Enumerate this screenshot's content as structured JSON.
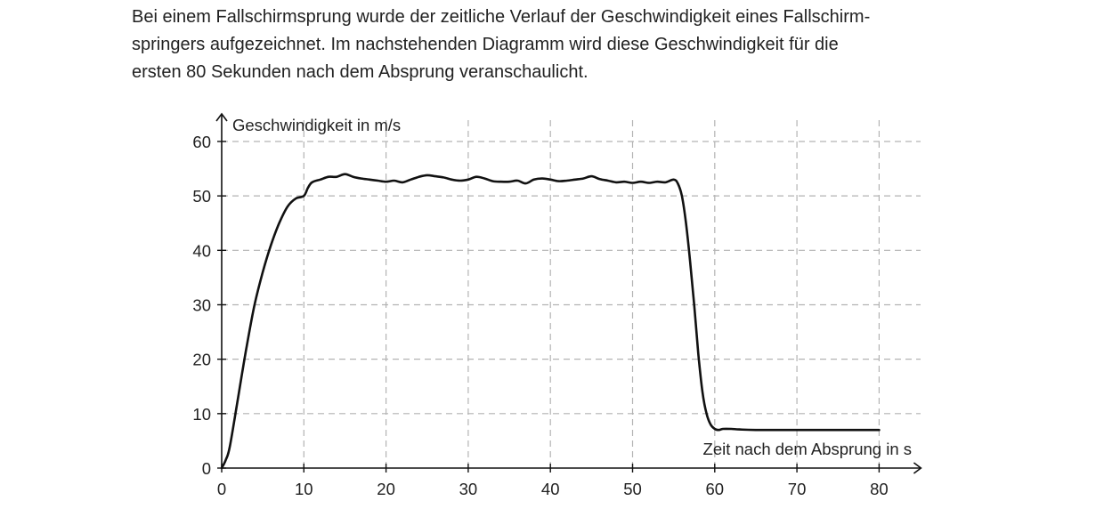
{
  "intro_lines": [
    "Bei einem Fallschirmsprung wurde der zeitliche Verlauf der Geschwindigkeit eines Fallschirm-",
    "springers aufgezeichnet. Im nachstehenden Diagramm wird diese Geschwindigkeit für die",
    "ersten 80 Sekunden nach dem Absprung veranschaulicht."
  ],
  "chart_data": {
    "type": "line",
    "xlabel": "Zeit nach dem Absprung in s",
    "ylabel": "Geschwindigkeit in m/s",
    "xlim": [
      0,
      80
    ],
    "ylim": [
      0,
      60
    ],
    "xticks": [
      0,
      10,
      20,
      30,
      40,
      50,
      60,
      70,
      80
    ],
    "yticks": [
      0,
      10,
      20,
      30,
      40,
      50,
      60
    ],
    "grid": true,
    "series": [
      {
        "x": [
          0,
          0.5,
          1,
          2,
          3,
          4,
          5,
          6,
          7,
          8,
          9,
          10,
          10.5,
          11,
          12,
          13,
          14,
          15,
          16,
          17,
          18,
          19,
          20,
          21,
          22,
          23,
          24,
          25,
          26,
          27,
          28,
          29,
          30,
          31,
          32,
          33,
          34,
          35,
          36,
          37,
          38,
          39,
          40,
          41,
          42,
          43,
          44,
          45,
          46,
          47,
          48,
          49,
          50,
          51,
          52,
          53,
          54,
          55,
          55.5,
          56,
          56.5,
          57,
          57.5,
          58,
          58.5,
          59,
          59.5,
          60,
          60.5,
          61,
          62,
          63,
          65,
          70,
          75,
          80
        ],
        "y": [
          0,
          1.5,
          4,
          13,
          22,
          30,
          36,
          41,
          45,
          48,
          49.5,
          50,
          51.5,
          52.5,
          53,
          53.5,
          53.5,
          54,
          53.5,
          53.2,
          53,
          52.8,
          52.6,
          52.8,
          52.5,
          53,
          53.5,
          53.8,
          53.6,
          53.4,
          53,
          52.8,
          53,
          53.5,
          53.2,
          52.7,
          52.6,
          52.6,
          52.8,
          52.3,
          53,
          53.2,
          53,
          52.7,
          52.8,
          53,
          53.2,
          53.6,
          53.1,
          52.8,
          52.5,
          52.6,
          52.4,
          52.6,
          52.4,
          52.6,
          52.5,
          53,
          52.3,
          50,
          45,
          38,
          30,
          21,
          14,
          10,
          8,
          7.2,
          7,
          7.2,
          7.2,
          7.1,
          7,
          7,
          7,
          7
        ]
      }
    ]
  }
}
